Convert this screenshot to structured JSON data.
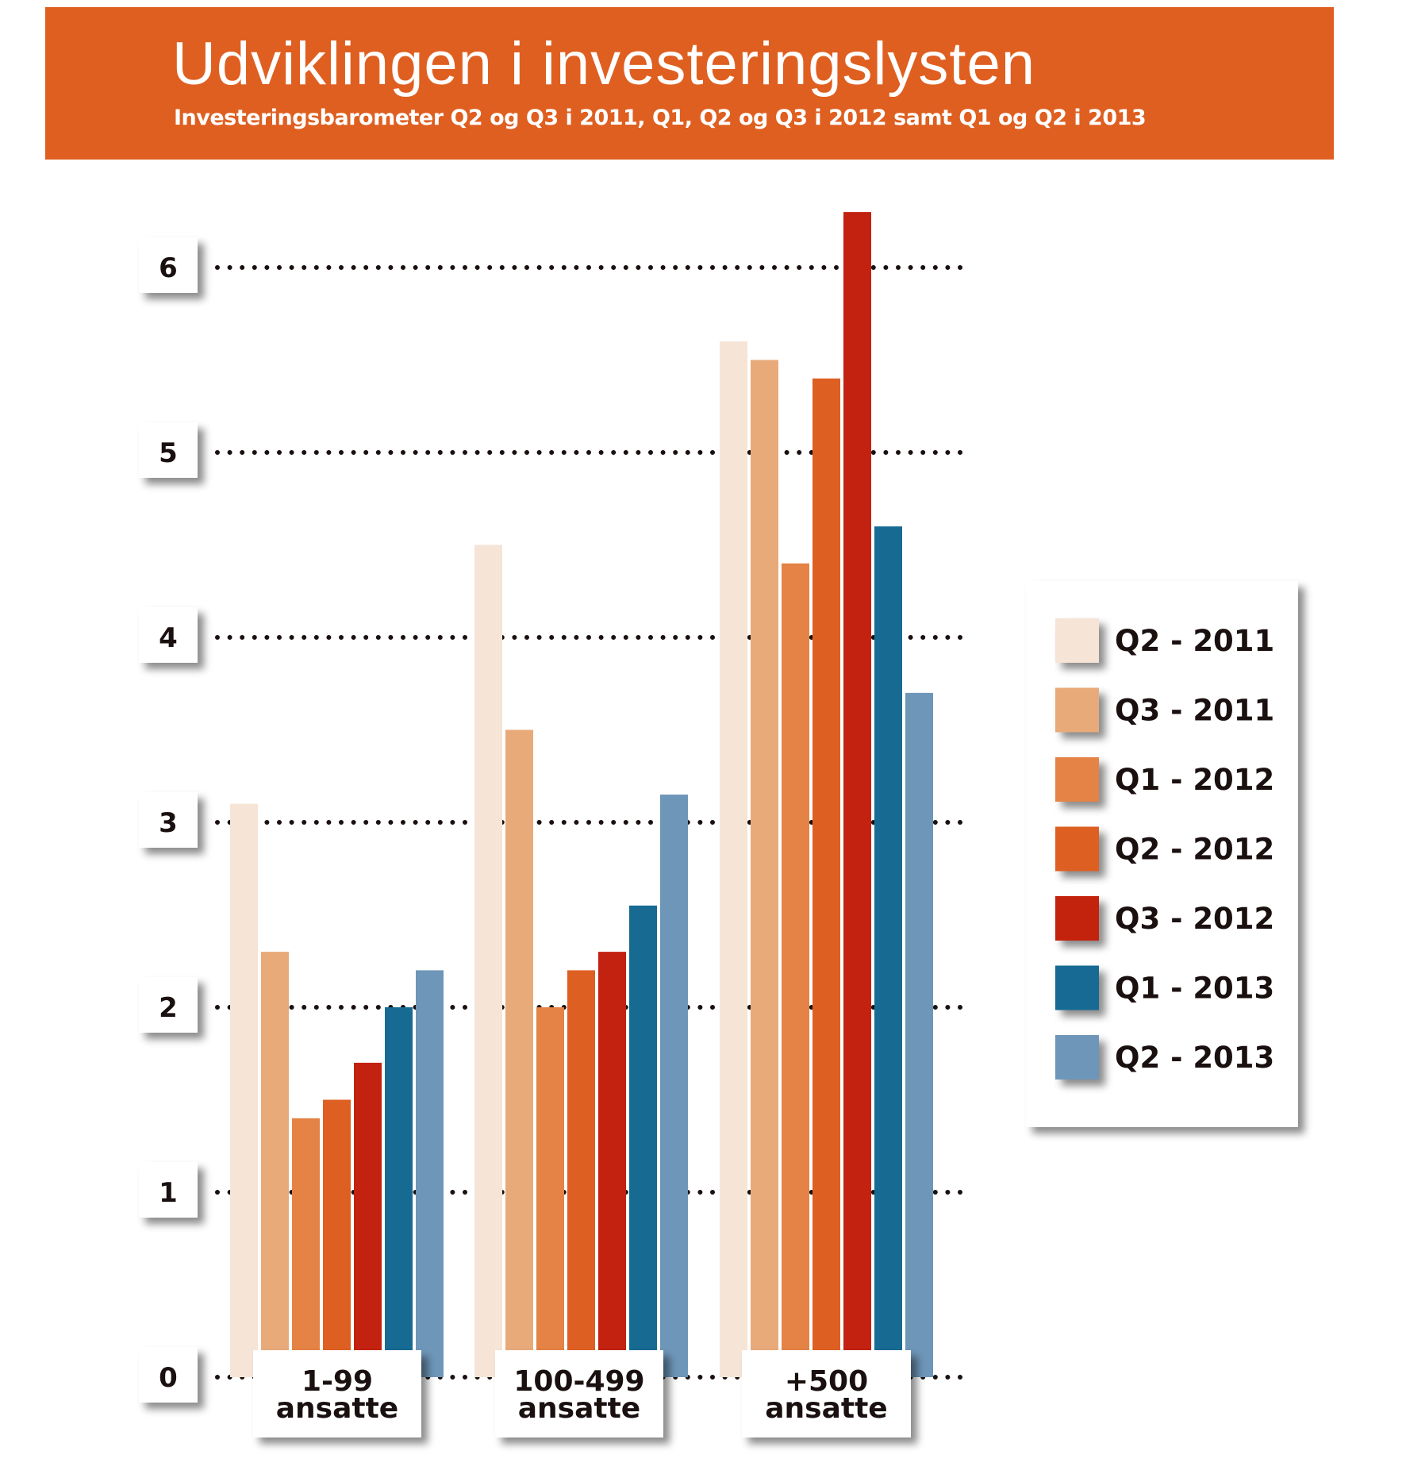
{
  "header": {
    "title": "Udviklingen i investeringslysten",
    "subtitle": "Investeringsbarometer Q2 og Q3 i 2011,  Q1, Q2 og Q3 i 2012 samt Q1  og Q2 i 2013",
    "background_color": "#df5f20"
  },
  "chart_data": {
    "type": "bar",
    "title": "Udviklingen i investeringslysten",
    "subtitle": "Investeringsbarometer Q2 og Q3 i 2011,  Q1, Q2 og Q3 i 2012 samt Q1  og Q2 i 2013",
    "categories": [
      [
        "1-99",
        "ansatte"
      ],
      [
        "100-499",
        "ansatte"
      ],
      [
        "+500",
        "ansatte"
      ]
    ],
    "yticks": [
      "0",
      "1",
      "2",
      "3",
      "4",
      "5",
      "6"
    ],
    "ylim": [
      0,
      6.3
    ],
    "grid": "dotted horizontal",
    "legend_position": "right",
    "series": [
      {
        "name": "Q2 - 2011",
        "color": "#f6e4d6",
        "values": [
          3.1,
          4.5,
          5.6
        ]
      },
      {
        "name": "Q3 - 2011",
        "color": "#e9aa7a",
        "values": [
          2.3,
          3.5,
          5.5
        ]
      },
      {
        "name": "Q1 - 2012",
        "color": "#e48345",
        "values": [
          1.4,
          2.0,
          4.4
        ]
      },
      {
        "name": "Q2 - 2012",
        "color": "#de5f22",
        "values": [
          1.5,
          2.2,
          5.4
        ]
      },
      {
        "name": "Q3 - 2012",
        "color": "#c32211",
        "values": [
          1.7,
          2.3,
          6.3
        ]
      },
      {
        "name": "Q1 - 2013",
        "color": "#176b93",
        "values": [
          2.0,
          2.55,
          4.6
        ]
      },
      {
        "name": "Q2 - 2013",
        "color": "#6e96b8",
        "values": [
          2.2,
          3.15,
          3.7
        ]
      }
    ]
  }
}
